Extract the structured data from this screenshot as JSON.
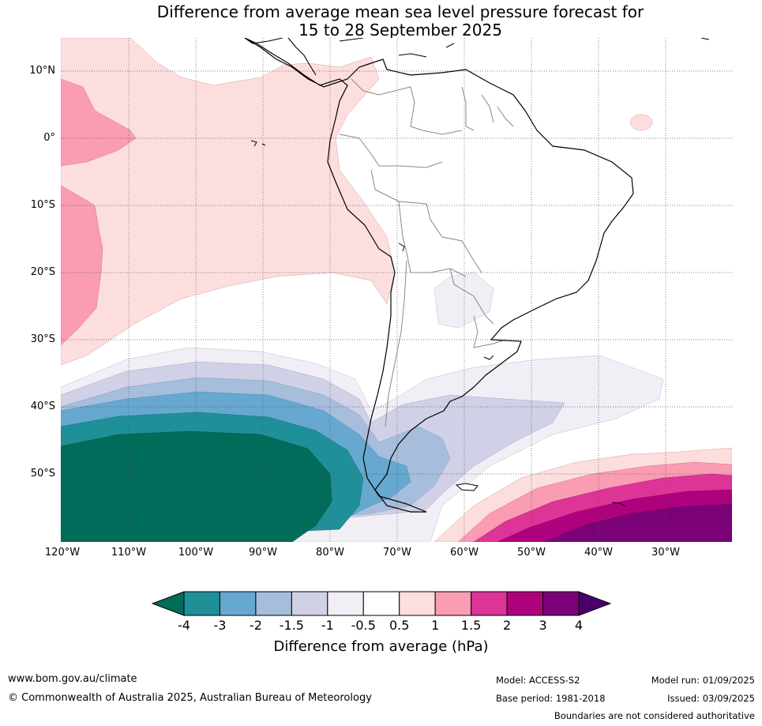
{
  "title": {
    "line1": "Difference from average mean sea level pressure forecast for",
    "line2": "15 to 28 September 2025"
  },
  "map": {
    "lat_labels": [
      "10°N",
      "0°",
      "10°S",
      "20°S",
      "30°S",
      "40°S",
      "50°S"
    ],
    "lon_labels": [
      "120°W",
      "110°W",
      "100°W",
      "90°W",
      "80°W",
      "70°W",
      "60°W",
      "50°W",
      "40°W",
      "30°W"
    ],
    "gridlines": true
  },
  "colorbar": {
    "ticks": [
      "-4",
      "-3",
      "-2",
      "-1.5",
      "-1",
      "-0.5",
      "0.5",
      "1",
      "1.5",
      "2",
      "3",
      "4"
    ],
    "colors": [
      "#1f9098",
      "#66a8cf",
      "#a6bddb",
      "#d0d1e6",
      "#f1eef6",
      "#ffffff",
      "#fddede",
      "#f99cb4",
      "#dd3497",
      "#ae017e",
      "#7a0177"
    ],
    "under_color": "#016c59",
    "over_color": "#49006a",
    "label": "Difference from average (hPa)"
  },
  "footer": {
    "website": "www.bom.gov.au/climate",
    "copyright": "© Commonwealth of Australia 2025, Australian Bureau of Meteorology",
    "model": "Model: ACCESS-S2",
    "base_period": "Base period: 1981-2018",
    "model_run": "Model run: 01/09/2025",
    "issued": "Issued: 03/09/2025",
    "disclaimer": "Boundaries are not considered authoritative"
  }
}
